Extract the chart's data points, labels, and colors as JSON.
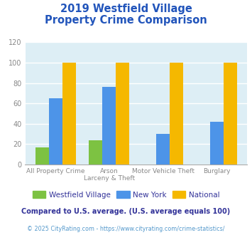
{
  "title_line1": "2019 Westfield Village",
  "title_line2": "Property Crime Comparison",
  "title_color": "#2255bb",
  "cat_labels_line1": [
    "All Property Crime",
    "Arson",
    "Motor Vehicle Theft",
    "Burglary"
  ],
  "cat_labels_line2": [
    "",
    "Larceny & Theft",
    "",
    ""
  ],
  "westfield_values": [
    17,
    24,
    0,
    0
  ],
  "newyork_values": [
    65,
    76,
    30,
    42
  ],
  "national_values": [
    100,
    100,
    100,
    100
  ],
  "westfield_color": "#7dc242",
  "newyork_color": "#4d94e8",
  "national_color": "#f5b800",
  "ylim": [
    0,
    120
  ],
  "yticks": [
    0,
    20,
    40,
    60,
    80,
    100,
    120
  ],
  "background_color": "#ddeef5",
  "legend_labels": [
    "Westfield Village",
    "New York",
    "National"
  ],
  "legend_text_color": "#333399",
  "footnote1": "Compared to U.S. average. (U.S. average equals 100)",
  "footnote2": "© 2025 CityRating.com - https://www.cityrating.com/crime-statistics/",
  "footnote1_color": "#333399",
  "footnote2_color": "#5599cc",
  "tick_label_color": "#888888",
  "grid_color": "#ffffff"
}
